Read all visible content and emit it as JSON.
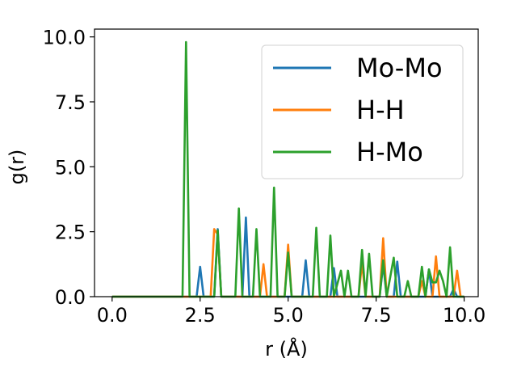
{
  "chart_data": {
    "type": "line",
    "xlabel": "r (Å)",
    "ylabel": "g(r)",
    "xlim": [
      -0.5,
      10.4
    ],
    "ylim": [
      0,
      10.3
    ],
    "xticks": [
      0.0,
      2.5,
      5.0,
      7.5,
      10.0
    ],
    "xtick_labels": [
      "0.0",
      "2.5",
      "5.0",
      "7.5",
      "10.0"
    ],
    "yticks": [
      0.0,
      2.5,
      5.0,
      7.5,
      10.0
    ],
    "ytick_labels": [
      "0.0",
      "2.5",
      "5.0",
      "7.5",
      "10.0"
    ],
    "grid": false,
    "legend_position": "top-right",
    "series": [
      {
        "name": "Mo-Mo",
        "color": "#1f77b4",
        "points": [
          [
            0.0,
            0
          ],
          [
            2.4,
            0
          ],
          [
            2.5,
            1.15
          ],
          [
            2.6,
            0
          ],
          [
            2.9,
            0
          ],
          [
            3.0,
            2.6
          ],
          [
            3.1,
            0
          ],
          [
            3.7,
            0
          ],
          [
            3.8,
            3.05
          ],
          [
            3.9,
            0
          ],
          [
            5.4,
            0
          ],
          [
            5.5,
            1.4
          ],
          [
            5.6,
            0
          ],
          [
            6.2,
            0
          ],
          [
            6.3,
            1.1
          ],
          [
            6.4,
            0
          ],
          [
            7.6,
            0
          ],
          [
            7.7,
            1.25
          ],
          [
            7.8,
            0
          ],
          [
            8.0,
            0
          ],
          [
            8.1,
            1.35
          ],
          [
            8.2,
            0
          ],
          [
            8.9,
            0
          ],
          [
            9.0,
            1.05
          ],
          [
            9.1,
            0
          ],
          [
            9.6,
            0
          ],
          [
            9.7,
            0.3
          ],
          [
            9.8,
            0
          ],
          [
            10.0,
            0
          ]
        ]
      },
      {
        "name": "H-H",
        "color": "#ff7f0e",
        "points": [
          [
            0.0,
            0
          ],
          [
            2.8,
            0
          ],
          [
            2.9,
            2.6
          ],
          [
            3.0,
            2.4
          ],
          [
            3.1,
            0
          ],
          [
            4.2,
            0
          ],
          [
            4.3,
            1.25
          ],
          [
            4.4,
            0
          ],
          [
            4.9,
            0
          ],
          [
            5.0,
            2.0
          ],
          [
            5.1,
            0
          ],
          [
            7.0,
            0
          ],
          [
            7.1,
            1.3
          ],
          [
            7.2,
            0
          ],
          [
            7.6,
            0
          ],
          [
            7.7,
            2.25
          ],
          [
            7.8,
            0
          ],
          [
            8.7,
            0
          ],
          [
            8.8,
            0.6
          ],
          [
            8.9,
            0
          ],
          [
            9.1,
            0
          ],
          [
            9.2,
            1.55
          ],
          [
            9.3,
            0
          ],
          [
            9.7,
            0
          ],
          [
            9.8,
            1.0
          ],
          [
            9.9,
            0
          ],
          [
            10.0,
            0
          ]
        ]
      },
      {
        "name": "H-Mo",
        "color": "#2ca02c",
        "points": [
          [
            0.0,
            0
          ],
          [
            1.9,
            0
          ],
          [
            2.0,
            0
          ],
          [
            2.1,
            9.8
          ],
          [
            2.2,
            0
          ],
          [
            2.9,
            0
          ],
          [
            3.0,
            2.55
          ],
          [
            3.1,
            0
          ],
          [
            3.5,
            0
          ],
          [
            3.6,
            3.4
          ],
          [
            3.7,
            0
          ],
          [
            4.0,
            0
          ],
          [
            4.1,
            2.6
          ],
          [
            4.2,
            0
          ],
          [
            4.5,
            0
          ],
          [
            4.6,
            4.2
          ],
          [
            4.7,
            0
          ],
          [
            4.9,
            0
          ],
          [
            5.0,
            1.7
          ],
          [
            5.1,
            0
          ],
          [
            5.7,
            0
          ],
          [
            5.8,
            2.65
          ],
          [
            5.9,
            0
          ],
          [
            6.1,
            0
          ],
          [
            6.2,
            2.35
          ],
          [
            6.3,
            0
          ],
          [
            6.5,
            1.0
          ],
          [
            6.6,
            0
          ],
          [
            6.7,
            1.0
          ],
          [
            6.8,
            0
          ],
          [
            7.0,
            0
          ],
          [
            7.1,
            1.8
          ],
          [
            7.2,
            0
          ],
          [
            7.3,
            1.65
          ],
          [
            7.4,
            0
          ],
          [
            7.6,
            0
          ],
          [
            7.7,
            1.4
          ],
          [
            7.8,
            0
          ],
          [
            8.0,
            1.5
          ],
          [
            8.1,
            0
          ],
          [
            8.3,
            0
          ],
          [
            8.4,
            0.6
          ],
          [
            8.5,
            0
          ],
          [
            8.7,
            0
          ],
          [
            8.8,
            1.15
          ],
          [
            8.9,
            0
          ],
          [
            9.0,
            1.05
          ],
          [
            9.1,
            0.55
          ],
          [
            9.2,
            0.55
          ],
          [
            9.3,
            1.0
          ],
          [
            9.4,
            0.6
          ],
          [
            9.5,
            0
          ],
          [
            9.6,
            1.9
          ],
          [
            9.7,
            0
          ],
          [
            10.0,
            0
          ]
        ]
      }
    ]
  }
}
